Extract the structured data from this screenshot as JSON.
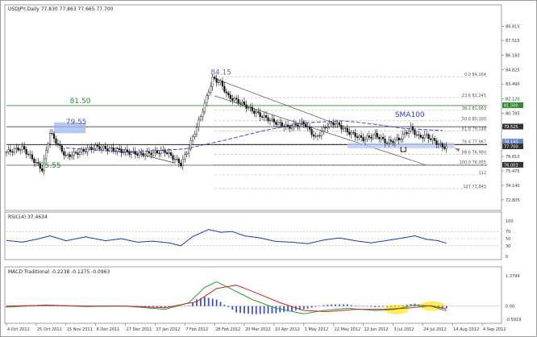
{
  "chart_data": {
    "type": "candlestick",
    "main": {
      "title": "USDJPY,Daily",
      "ohlc_readout": "77.830 77.863 77.665 77.700",
      "last_price": "77.700",
      "price_axis_ticks": [
        "88.815",
        "87.515",
        "86.160",
        "84.825",
        "83.490",
        "82.120",
        "80.785",
        "79.450",
        "78.115",
        "76.810",
        "75.475",
        "74.140",
        "72.805"
      ],
      "ylim": [
        72.2,
        90.2
      ],
      "time_labels": [
        "4 Oct 2011",
        "25 Oct 2011",
        "15 Nov 2011",
        "6 Dec 2011",
        "27 Dec 2011",
        "17 Jan 2012",
        "7 Feb 2012",
        "28 Feb 2012",
        "20 Mar 2012",
        "10 Apr 2012",
        "1 May 2012",
        "22 May 2012",
        "12 Jun 2012",
        "3 Jul 2012",
        "24 Jul 2012",
        "14 Aug 2012",
        "4 Sep 2012"
      ],
      "time_label_positions": [
        0,
        15,
        30,
        45,
        60,
        75,
        90,
        105,
        120,
        135,
        150,
        165,
        180,
        195,
        210,
        225,
        240
      ],
      "fib_levels": [
        {
          "label": "0.0 84.164",
          "value": 84.16
        },
        {
          "label": "23.6 82.245",
          "value": 82.24
        },
        {
          "label": "38.2 81.063",
          "value": 81.06
        },
        {
          "label": "50.0 80.100",
          "value": 80.1
        },
        {
          "label": "61.8 79.148",
          "value": 79.15
        },
        {
          "label": "76.4 77.967",
          "value": 77.97
        },
        {
          "label": "88.6 76.980",
          "value": 76.98
        },
        {
          "label": "100.0 76.055",
          "value": 76.05
        },
        {
          "label": "112",
          "value": 75.1
        },
        {
          "label": "127 73.843",
          "value": 73.84
        }
      ],
      "horizontal_lines": [
        {
          "label": "81.50",
          "value": 81.5,
          "color": "#2e8b2e"
        },
        {
          "label": "79.55",
          "value": 79.55,
          "color": "#444444"
        },
        {
          "label": "77.90",
          "value": 77.9,
          "color": "#222222"
        },
        {
          "label": "76.00",
          "value": 76.0,
          "color": "#666666"
        }
      ],
      "tag_values": [
        "81.500",
        "79.525",
        "78.143",
        "77.700",
        "76.003"
      ],
      "annotations": [
        {
          "text": "84.15",
          "value": 84.15,
          "t": 103,
          "color": "#6a6a9a"
        },
        {
          "text": "81.50",
          "value": 81.5,
          "t": 32,
          "color": "#2e8b2e"
        },
        {
          "text": "79.55",
          "value": 79.55,
          "t": 30,
          "color": "#5555aa"
        },
        {
          "text": "75.55",
          "value": 75.55,
          "t": 17,
          "color": "#2e8b2e"
        },
        {
          "text": "SMA100",
          "value": 80.25,
          "t": 196,
          "color": "#3333cc"
        }
      ],
      "swing_points": [
        {
          "t": 0,
          "v": 77.2
        },
        {
          "t": 8,
          "v": 77.6
        },
        {
          "t": 18,
          "v": 75.6
        },
        {
          "t": 22,
          "v": 79.0
        },
        {
          "t": 30,
          "v": 76.8
        },
        {
          "t": 45,
          "v": 77.7
        },
        {
          "t": 55,
          "v": 77.4
        },
        {
          "t": 68,
          "v": 77.0
        },
        {
          "t": 80,
          "v": 77.3
        },
        {
          "t": 88,
          "v": 76.1
        },
        {
          "t": 92,
          "v": 77.6
        },
        {
          "t": 98,
          "v": 80.5
        },
        {
          "t": 104,
          "v": 84.0
        },
        {
          "t": 108,
          "v": 83.6
        },
        {
          "t": 112,
          "v": 82.3
        },
        {
          "t": 118,
          "v": 81.8
        },
        {
          "t": 122,
          "v": 81.3
        },
        {
          "t": 128,
          "v": 80.6
        },
        {
          "t": 135,
          "v": 80.0
        },
        {
          "t": 142,
          "v": 79.5
        },
        {
          "t": 150,
          "v": 79.9
        },
        {
          "t": 156,
          "v": 78.5
        },
        {
          "t": 162,
          "v": 79.7
        },
        {
          "t": 166,
          "v": 79.9
        },
        {
          "t": 172,
          "v": 79.1
        },
        {
          "t": 180,
          "v": 78.4
        },
        {
          "t": 186,
          "v": 78.8
        },
        {
          "t": 192,
          "v": 78.1
        },
        {
          "t": 198,
          "v": 78.4
        },
        {
          "t": 204,
          "v": 79.4
        },
        {
          "t": 208,
          "v": 78.6
        },
        {
          "t": 212,
          "v": 78.7
        },
        {
          "t": 216,
          "v": 78.2
        },
        {
          "t": 220,
          "v": 77.7
        }
      ],
      "sma100_points": [
        {
          "t": 30,
          "v": 77.6
        },
        {
          "t": 60,
          "v": 77.2
        },
        {
          "t": 90,
          "v": 77.5
        },
        {
          "t": 110,
          "v": 78.3
        },
        {
          "t": 130,
          "v": 79.2
        },
        {
          "t": 150,
          "v": 79.9
        },
        {
          "t": 170,
          "v": 80.1
        },
        {
          "t": 185,
          "v": 79.8
        },
        {
          "t": 200,
          "v": 79.4
        },
        {
          "t": 220,
          "v": 79.2
        }
      ],
      "channel": {
        "upper": [
          {
            "t": 105,
            "v": 84.0
          },
          {
            "t": 165,
            "v": 79.9
          }
        ],
        "lower": [
          {
            "t": 105,
            "v": 82.4
          },
          {
            "t": 212,
            "v": 76.0
          }
        ]
      },
      "support_line": [
        {
          "t": 55,
          "v": 77.6
        },
        {
          "t": 85,
          "v": 76.2
        }
      ]
    },
    "rsi": {
      "title": "RSI(14) 37.4634",
      "levels": [
        "70",
        "50",
        "30"
      ],
      "axis_ticks": [
        "100",
        "70",
        "50",
        "30",
        "0"
      ],
      "ylim": [
        0,
        100
      ],
      "points": [
        {
          "t": 0,
          "v": 45
        },
        {
          "t": 8,
          "v": 40
        },
        {
          "t": 15,
          "v": 48
        },
        {
          "t": 22,
          "v": 58
        },
        {
          "t": 30,
          "v": 44
        },
        {
          "t": 40,
          "v": 55
        },
        {
          "t": 50,
          "v": 44
        },
        {
          "t": 58,
          "v": 50
        },
        {
          "t": 66,
          "v": 40
        },
        {
          "t": 74,
          "v": 43
        },
        {
          "t": 82,
          "v": 38
        },
        {
          "t": 88,
          "v": 30
        },
        {
          "t": 94,
          "v": 56
        },
        {
          "t": 102,
          "v": 76
        },
        {
          "t": 108,
          "v": 68
        },
        {
          "t": 114,
          "v": 70
        },
        {
          "t": 120,
          "v": 58
        },
        {
          "t": 128,
          "v": 52
        },
        {
          "t": 136,
          "v": 42
        },
        {
          "t": 144,
          "v": 40
        },
        {
          "t": 152,
          "v": 36
        },
        {
          "t": 160,
          "v": 46
        },
        {
          "t": 168,
          "v": 52
        },
        {
          "t": 176,
          "v": 44
        },
        {
          "t": 184,
          "v": 38
        },
        {
          "t": 192,
          "v": 45
        },
        {
          "t": 200,
          "v": 52
        },
        {
          "t": 206,
          "v": 58
        },
        {
          "t": 212,
          "v": 48
        },
        {
          "t": 218,
          "v": 44
        },
        {
          "t": 222,
          "v": 37
        }
      ]
    },
    "macd": {
      "title": "MACD Traditional -0.2238 -0.1275 -0.0963",
      "axis_ticks": [
        "1.3799",
        "0.00",
        "-0.5919"
      ],
      "ylim": [
        -0.6,
        1.38
      ],
      "macd_line": [
        {
          "t": 0,
          "v": -0.05
        },
        {
          "t": 20,
          "v": 0.05
        },
        {
          "t": 40,
          "v": -0.02
        },
        {
          "t": 60,
          "v": 0.0
        },
        {
          "t": 80,
          "v": -0.15
        },
        {
          "t": 92,
          "v": 0.15
        },
        {
          "t": 100,
          "v": 0.85
        },
        {
          "t": 106,
          "v": 1.1
        },
        {
          "t": 114,
          "v": 0.75
        },
        {
          "t": 124,
          "v": 0.3
        },
        {
          "t": 136,
          "v": -0.1
        },
        {
          "t": 150,
          "v": -0.35
        },
        {
          "t": 160,
          "v": -0.2
        },
        {
          "t": 172,
          "v": -0.1
        },
        {
          "t": 186,
          "v": -0.2
        },
        {
          "t": 196,
          "v": -0.15
        },
        {
          "t": 206,
          "v": 0.05
        },
        {
          "t": 214,
          "v": 0.0
        },
        {
          "t": 222,
          "v": -0.22
        }
      ],
      "signal_line": [
        {
          "t": 0,
          "v": 0.0
        },
        {
          "t": 20,
          "v": 0.03
        },
        {
          "t": 40,
          "v": 0.0
        },
        {
          "t": 60,
          "v": 0.0
        },
        {
          "t": 80,
          "v": -0.08
        },
        {
          "t": 96,
          "v": 0.2
        },
        {
          "t": 106,
          "v": 0.8
        },
        {
          "t": 116,
          "v": 0.95
        },
        {
          "t": 126,
          "v": 0.6
        },
        {
          "t": 138,
          "v": 0.15
        },
        {
          "t": 150,
          "v": -0.2
        },
        {
          "t": 162,
          "v": -0.25
        },
        {
          "t": 176,
          "v": -0.15
        },
        {
          "t": 190,
          "v": -0.15
        },
        {
          "t": 204,
          "v": -0.08
        },
        {
          "t": 214,
          "v": 0.02
        },
        {
          "t": 222,
          "v": -0.13
        }
      ],
      "highlights": [
        {
          "t": 197,
          "v": -0.15
        },
        {
          "t": 215,
          "v": 0.0
        }
      ]
    }
  }
}
